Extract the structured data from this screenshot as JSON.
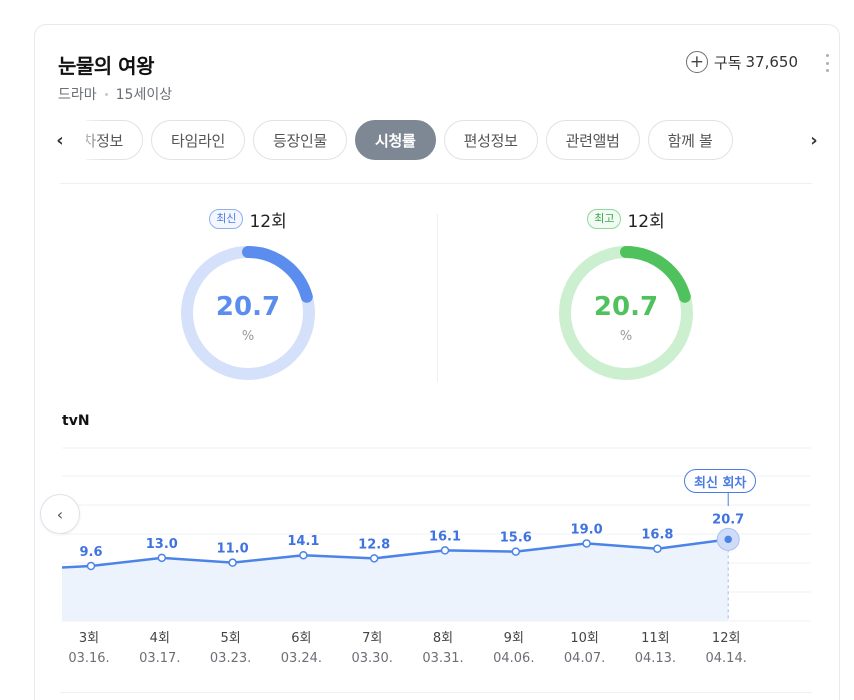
{
  "program": {
    "title": "눈물의 여왕",
    "genre": "드라마",
    "rating": "15세이상",
    "subscribe_label": "구독",
    "subscribe_count": "37,650"
  },
  "tabs": [
    "회차정보",
    "타임라인",
    "등장인물",
    "시청률",
    "편성정보",
    "관련앨범",
    "함께 볼"
  ],
  "active_tab": "시청률",
  "latest": {
    "badge": "최신",
    "episode": "12회",
    "value": "20.7",
    "unit": "%",
    "color": "#5b8def",
    "track": "#d5e1fa"
  },
  "best": {
    "badge": "최고",
    "episode": "12회",
    "value": "20.7",
    "unit": "%",
    "color": "#4fc25d",
    "track": "#cbefcf"
  },
  "channel": "tvN",
  "callout": "최신 회차",
  "chart_data": {
    "type": "area",
    "categories": [
      "3회",
      "4회",
      "5회",
      "6회",
      "7회",
      "8회",
      "9회",
      "10회",
      "11회",
      "12회"
    ],
    "dates": [
      "03.16.",
      "03.17.",
      "03.23.",
      "03.24.",
      "03.30.",
      "03.31.",
      "04.06.",
      "04.07.",
      "04.13.",
      "04.14."
    ],
    "values": [
      9.6,
      13.0,
      11.0,
      14.1,
      12.8,
      16.1,
      15.6,
      19.0,
      16.8,
      20.7
    ],
    "value_labels": [
      "9.6",
      "13.0",
      "11.0",
      "14.1",
      "12.8",
      "16.1",
      "15.6",
      "19.0",
      "16.8",
      "20.7"
    ],
    "line_color": "#4b84e6",
    "fill_color": "#edf3fd",
    "label_color": "#3f73e0",
    "grid": true
  }
}
